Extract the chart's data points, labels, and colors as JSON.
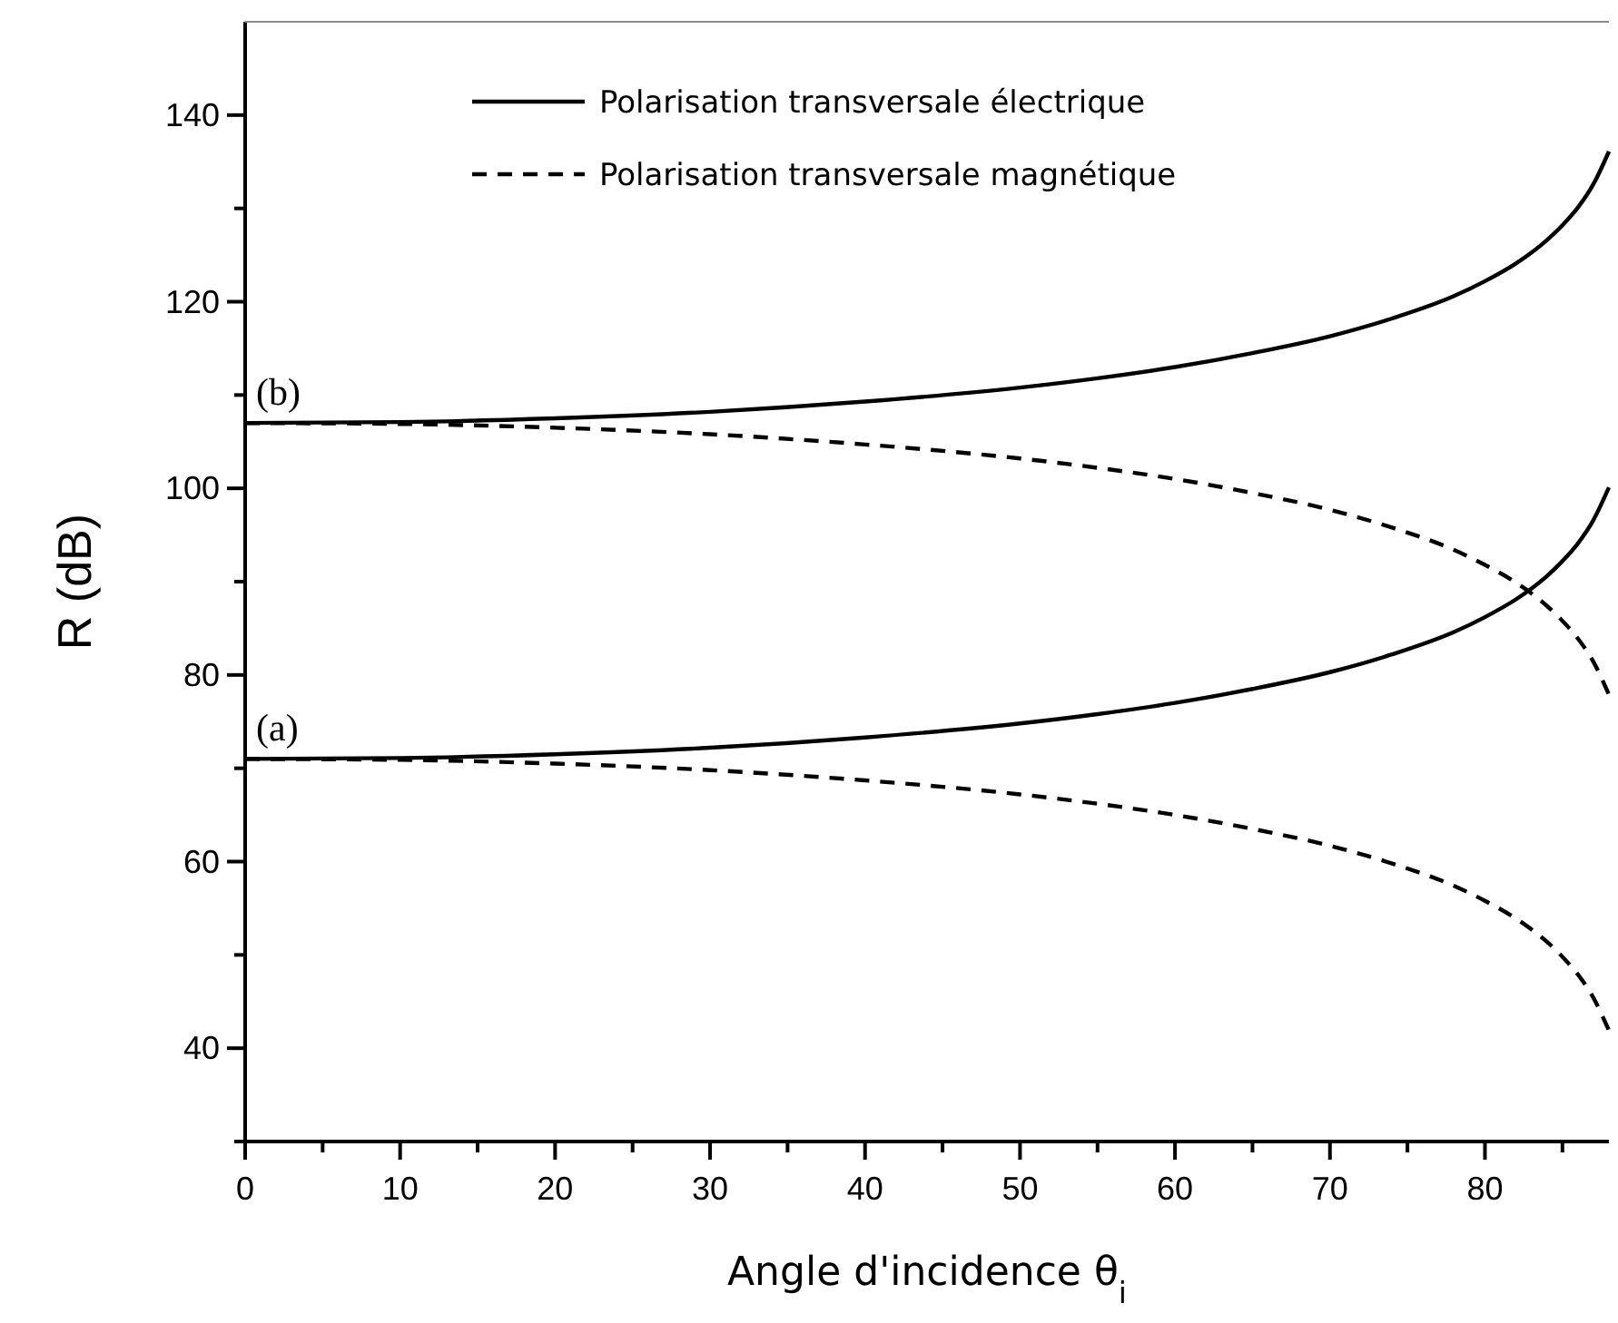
{
  "chart_data": {
    "type": "line",
    "xlabel": "Angle d'incidence θ$_{i}$",
    "ylabel": "R (dB)",
    "x": [
      0,
      10,
      20,
      30,
      40,
      50,
      55,
      60,
      65,
      70,
      74,
      78,
      80,
      82,
      84,
      85,
      86,
      87,
      88
    ],
    "series": [
      {
        "name": "Polarisation transversale électrique",
        "color": "#000000",
        "line_style": "solid",
        "values": [
          71,
          71.1,
          71.5,
          72.2,
          73.3,
          74.8,
          75.8,
          77,
          78.5,
          80.3,
          82.2,
          84.6,
          86.2,
          88.1,
          90.6,
          92.2,
          94.1,
          96.6,
          100.1
        ]
      },
      {
        "name": "Polarisation transversale magnétique",
        "color": "#000000",
        "line_style": "dashed",
        "values": [
          71,
          70.9,
          70.5,
          69.8,
          68.7,
          67.2,
          66.2,
          65,
          63.5,
          61.7,
          59.8,
          57.4,
          55.8,
          53.9,
          51.4,
          49.8,
          47.9,
          45.4,
          41.9
        ]
      },
      {
        "color": "#000000",
        "line_style": "solid",
        "values": [
          107,
          107.1,
          107.5,
          108.2,
          109.3,
          110.8,
          111.8,
          113,
          114.5,
          116.3,
          118.2,
          120.6,
          122.2,
          124.1,
          126.6,
          128.2,
          130.1,
          132.6,
          136.1
        ]
      },
      {
        "color": "#000000",
        "line_style": "dashed",
        "values": [
          107,
          106.9,
          106.5,
          105.8,
          104.7,
          103.2,
          102.2,
          101,
          99.5,
          97.7,
          95.8,
          93.4,
          91.8,
          89.9,
          87.4,
          85.8,
          83.9,
          81.4,
          77.9
        ]
      }
    ],
    "annotations": [
      {
        "text": "(a)",
        "x": 0,
        "y": 71
      },
      {
        "text": "(b)",
        "x": 0,
        "y": 107
      }
    ],
    "xlim": [
      0,
      88
    ],
    "ylim": [
      30,
      150
    ],
    "xticks": [
      0,
      {
        "value": 5,
        "label": null
      },
      10,
      {
        "value": 15,
        "label": null
      },
      20,
      {
        "value": 25,
        "label": null
      },
      30,
      {
        "value": 35,
        "label": null
      },
      40,
      {
        "value": 45,
        "label": null
      },
      50,
      {
        "value": 55,
        "label": null
      },
      60,
      {
        "value": 65,
        "label": null
      },
      70,
      {
        "value": 75,
        "label": null
      },
      80,
      {
        "value": 85,
        "label": null
      }
    ],
    "yticks": [
      {
        "value": 30,
        "label": null
      },
      40,
      {
        "value": 50,
        "label": null
      },
      60,
      {
        "value": 70,
        "label": null
      },
      80,
      {
        "value": 90,
        "label": null
      },
      100,
      {
        "value": 110,
        "label": null
      },
      120,
      {
        "value": 130,
        "label": null
      },
      140
    ],
    "legend": "top left",
    "grid": false
  }
}
